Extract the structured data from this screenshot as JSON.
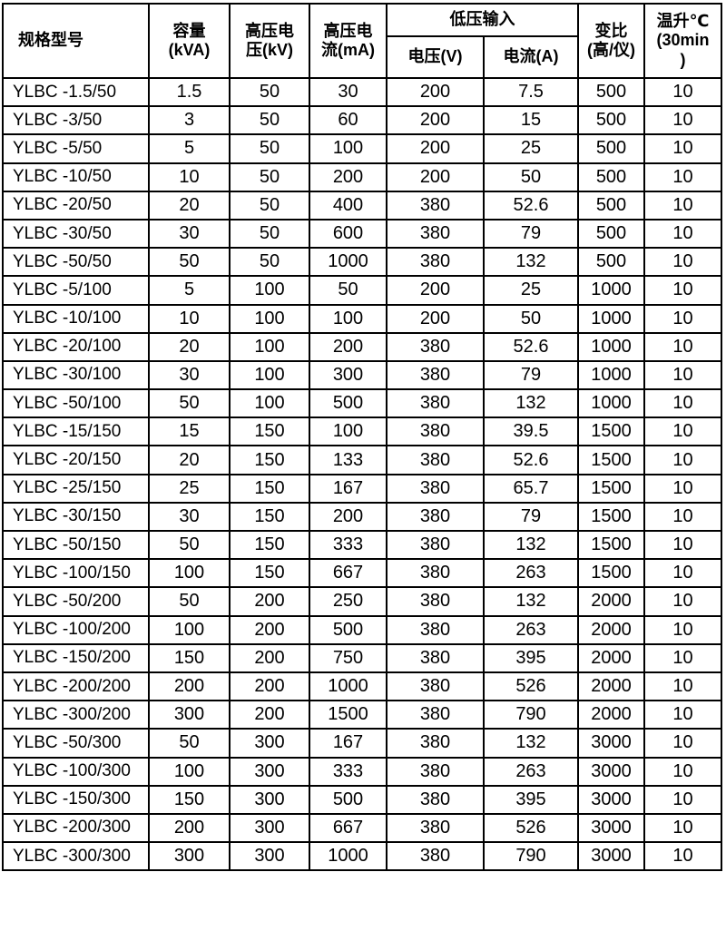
{
  "table": {
    "header": {
      "model": "规格型号",
      "capacity": "容量\n(kVA)",
      "hv_voltage": "高压电\n压(kV)",
      "hv_current": "高压电\n流(mA)",
      "lv_input": "低压输入",
      "lv_voltage": "电压(V)",
      "lv_current": "电流(A)",
      "ratio": "变比\n(高/仪)",
      "temp_rise": "温升℃\n(30min\n)"
    },
    "column_keys": [
      "model",
      "capacity-kva",
      "hv-voltage-kv",
      "hv-current-ma",
      "lv-voltage-v",
      "lv-current-a",
      "ratio",
      "temp-rise"
    ],
    "rows": [
      [
        "YLBC -1.5/50",
        "1.5",
        "50",
        "30",
        "200",
        "7.5",
        "500",
        "10"
      ],
      [
        "YLBC -3/50",
        "3",
        "50",
        "60",
        "200",
        "15",
        "500",
        "10"
      ],
      [
        "YLBC -5/50",
        "5",
        "50",
        "100",
        "200",
        "25",
        "500",
        "10"
      ],
      [
        "YLBC -10/50",
        "10",
        "50",
        "200",
        "200",
        "50",
        "500",
        "10"
      ],
      [
        "YLBC -20/50",
        "20",
        "50",
        "400",
        "380",
        "52.6",
        "500",
        "10"
      ],
      [
        "YLBC -30/50",
        "30",
        "50",
        "600",
        "380",
        "79",
        "500",
        "10"
      ],
      [
        "YLBC -50/50",
        "50",
        "50",
        "1000",
        "380",
        "132",
        "500",
        "10"
      ],
      [
        "YLBC -5/100",
        "5",
        "100",
        "50",
        "200",
        "25",
        "1000",
        "10"
      ],
      [
        "YLBC -10/100",
        "10",
        "100",
        "100",
        "200",
        "50",
        "1000",
        "10"
      ],
      [
        "YLBC -20/100",
        "20",
        "100",
        "200",
        "380",
        "52.6",
        "1000",
        "10"
      ],
      [
        "YLBC -30/100",
        "30",
        "100",
        "300",
        "380",
        "79",
        "1000",
        "10"
      ],
      [
        "YLBC -50/100",
        "50",
        "100",
        "500",
        "380",
        "132",
        "1000",
        "10"
      ],
      [
        "YLBC -15/150",
        "15",
        "150",
        "100",
        "380",
        "39.5",
        "1500",
        "10"
      ],
      [
        "YLBC -20/150",
        "20",
        "150",
        "133",
        "380",
        "52.6",
        "1500",
        "10"
      ],
      [
        "YLBC -25/150",
        "25",
        "150",
        "167",
        "380",
        "65.7",
        "1500",
        "10"
      ],
      [
        "YLBC -30/150",
        "30",
        "150",
        "200",
        "380",
        "79",
        "1500",
        "10"
      ],
      [
        "YLBC -50/150",
        "50",
        "150",
        "333",
        "380",
        "132",
        "1500",
        "10"
      ],
      [
        "YLBC -100/150",
        "100",
        "150",
        "667",
        "380",
        "263",
        "1500",
        "10"
      ],
      [
        "YLBC -50/200",
        "50",
        "200",
        "250",
        "380",
        "132",
        "2000",
        "10"
      ],
      [
        "YLBC -100/200",
        "100",
        "200",
        "500",
        "380",
        "263",
        "2000",
        "10"
      ],
      [
        "YLBC -150/200",
        "150",
        "200",
        "750",
        "380",
        "395",
        "2000",
        "10"
      ],
      [
        "YLBC -200/200",
        "200",
        "200",
        "1000",
        "380",
        "526",
        "2000",
        "10"
      ],
      [
        "YLBC -300/200",
        "300",
        "200",
        "1500",
        "380",
        "790",
        "2000",
        "10"
      ],
      [
        "YLBC -50/300",
        "50",
        "300",
        "167",
        "380",
        "132",
        "3000",
        "10"
      ],
      [
        "YLBC -100/300",
        "100",
        "300",
        "333",
        "380",
        "263",
        "3000",
        "10"
      ],
      [
        "YLBC -150/300",
        "150",
        "300",
        "500",
        "380",
        "395",
        "3000",
        "10"
      ],
      [
        "YLBC -200/300",
        "200",
        "300",
        "667",
        "380",
        "526",
        "3000",
        "10"
      ],
      [
        "YLBC -300/300",
        "300",
        "300",
        "1000",
        "380",
        "790",
        "3000",
        "10"
      ]
    ]
  },
  "colors": {
    "border": "#000000",
    "text": "#000000",
    "background": "#ffffff"
  }
}
